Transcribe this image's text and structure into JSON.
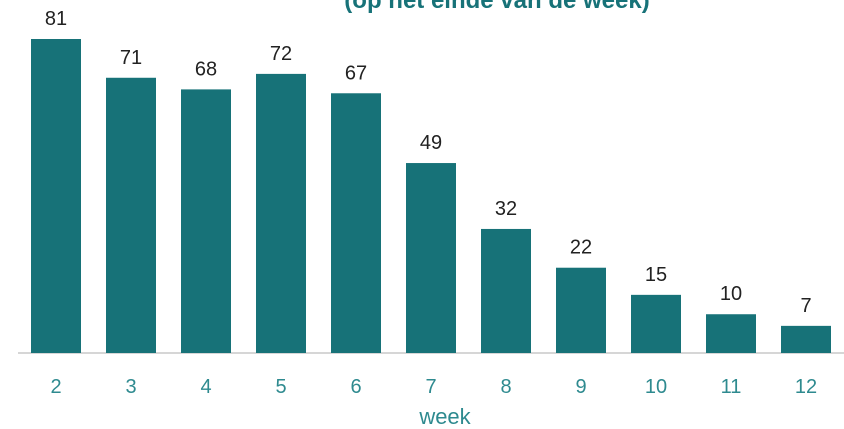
{
  "chart_data": {
    "type": "bar",
    "subtitle": "(op het einde van de week)",
    "categories": [
      "2",
      "3",
      "4",
      "5",
      "6",
      "7",
      "8",
      "9",
      "10",
      "11",
      "12"
    ],
    "values": [
      81,
      71,
      68,
      72,
      67,
      49,
      32,
      22,
      15,
      10,
      7
    ],
    "color": "#177278",
    "xlabel": "week"
  }
}
